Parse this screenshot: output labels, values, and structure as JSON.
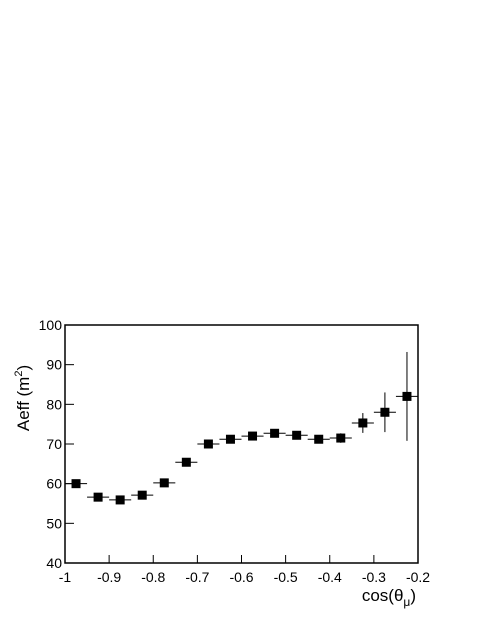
{
  "chart_data": {
    "type": "scatter",
    "x_label_parts": [
      "cos(θ",
      "μ",
      ")"
    ],
    "y_label_parts": [
      "Aeff (m",
      "2",
      ")"
    ],
    "series": [
      {
        "color": "#000000",
        "x": [
          -0.975,
          -0.925,
          -0.875,
          -0.825,
          -0.775,
          -0.725,
          -0.675,
          -0.625,
          -0.575,
          -0.525,
          -0.475,
          -0.425,
          -0.375,
          -0.325,
          -0.275,
          -0.225
        ],
        "values": [
          60,
          56.6,
          55.9,
          57.1,
          60.2,
          65.4,
          70,
          71.2,
          72,
          72.7,
          72.2,
          71.2,
          71.5,
          75.3,
          78,
          82
        ],
        "x_err": [
          0.025,
          0.025,
          0.025,
          0.025,
          0.025,
          0.025,
          0.025,
          0.025,
          0.025,
          0.025,
          0.025,
          0.025,
          0.025,
          0.025,
          0.025,
          0.025
        ],
        "y_err": [
          0.5,
          0.5,
          0.5,
          0.5,
          0.5,
          0.6,
          0.6,
          0.6,
          0.6,
          0.6,
          0.6,
          0.8,
          1.2,
          2.5,
          5,
          11.2
        ]
      }
    ],
    "xlim": [
      -1,
      -0.2
    ],
    "xticks": [
      -1,
      -0.9,
      -0.8,
      -0.7,
      -0.6,
      -0.5,
      -0.4,
      -0.3,
      -0.2
    ],
    "ylim": [
      40,
      100
    ],
    "yticks": [
      40,
      50,
      60,
      70,
      80,
      90,
      100
    ]
  }
}
